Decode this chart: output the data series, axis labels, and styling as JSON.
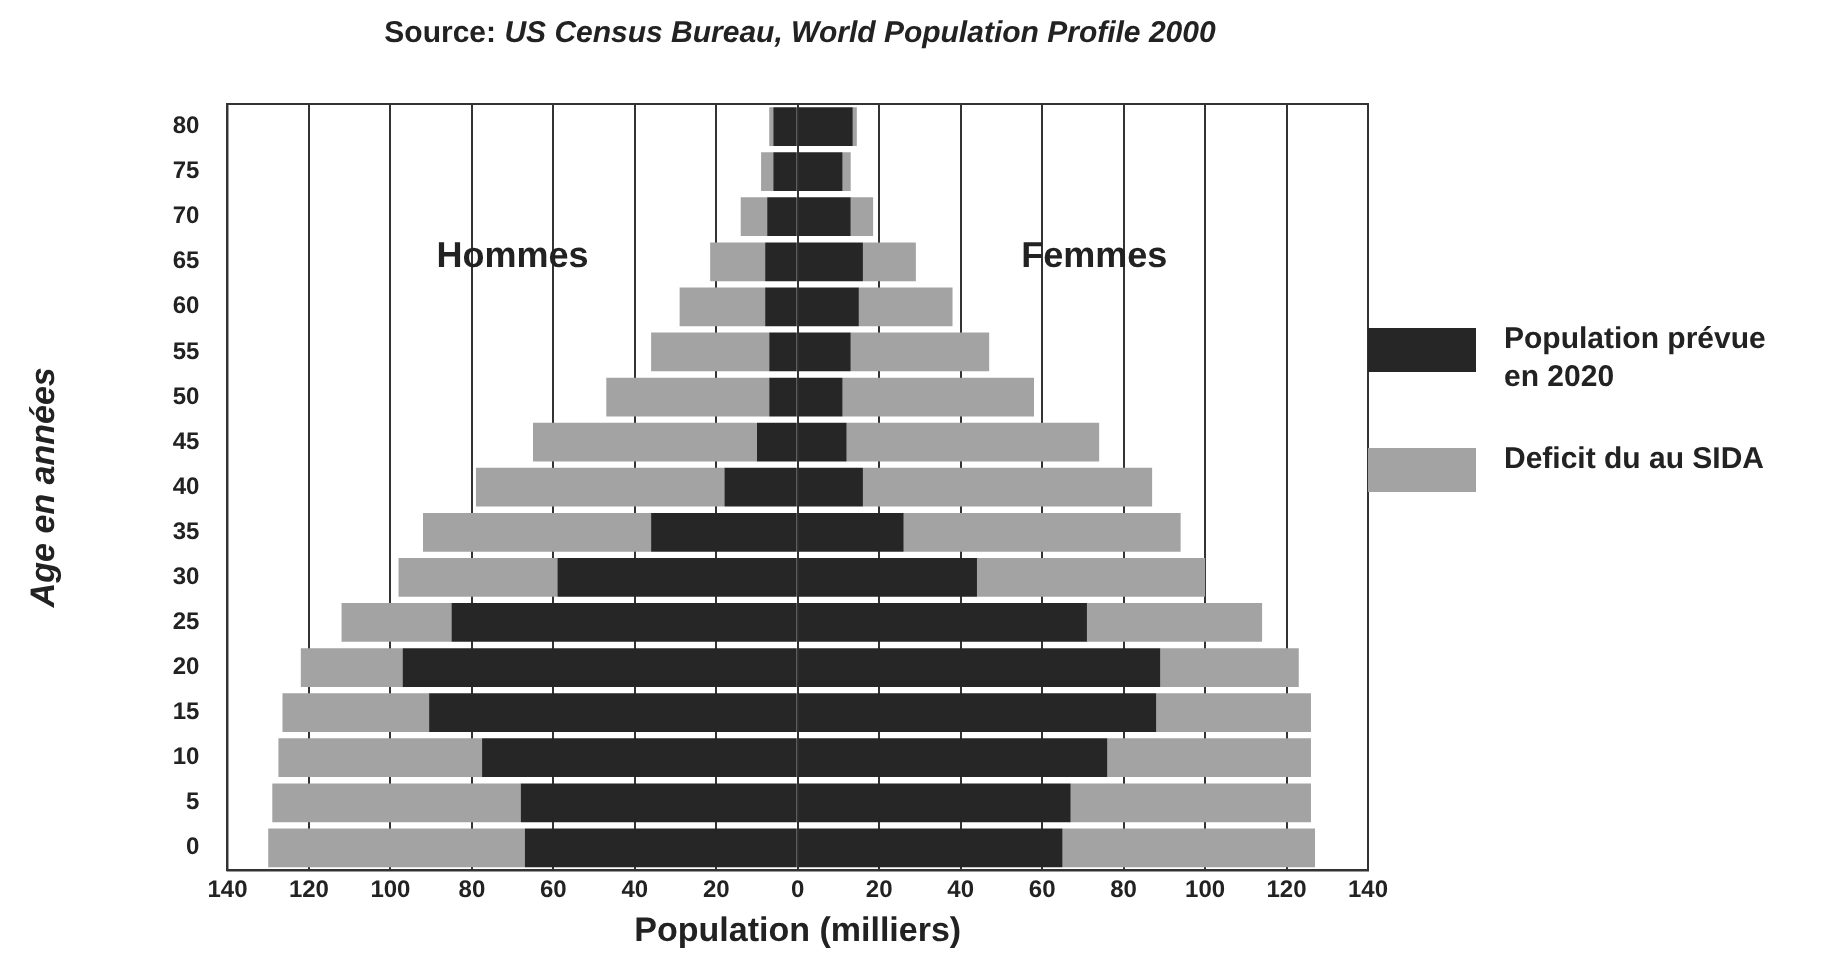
{
  "chart_data": {
    "type": "bar",
    "orientation": "horizontal",
    "stacked": true,
    "title": "Source: US Census Bureau, World Population Profile 2000",
    "xlabel": "Population (milliers)",
    "ylabel": "Age en années",
    "annotations": [
      "Hommes",
      "Femmes"
    ],
    "categories": [
      "80",
      "75",
      "70",
      "65",
      "60",
      "55",
      "50",
      "45",
      "40",
      "35",
      "30",
      "25",
      "20",
      "15",
      "10",
      "5",
      "0"
    ],
    "series": [
      {
        "name": "Population prévue en  2020",
        "color": "#262626",
        "values": [
          -6,
          -6,
          -7.5,
          -8,
          -8,
          -7,
          -7,
          -10,
          -18,
          -36,
          -59,
          -85,
          -97,
          -90.5,
          -77.5,
          -68,
          -67
        ]
      },
      {
        "color": "#262626",
        "values": [
          13.5,
          11,
          13,
          16,
          15,
          13,
          11,
          12,
          16,
          26,
          44,
          71,
          89,
          88,
          76,
          67,
          65
        ]
      },
      {
        "name": "Deficit du au SIDA",
        "color": "#a3a3a3",
        "values": [
          -1,
          -3,
          -6.5,
          -13.5,
          -21,
          -29,
          -40,
          -55,
          -61,
          -56,
          -39,
          -27,
          -25,
          -36,
          -50,
          -61,
          -63
        ]
      },
      {
        "color": "#a3a3a3",
        "values": [
          1,
          2,
          5.5,
          13,
          23,
          34,
          47,
          62,
          71,
          68,
          56,
          43,
          34,
          38,
          50,
          59,
          62
        ]
      }
    ],
    "xlim": [
      -140,
      140
    ],
    "xticks": [
      {
        "value": -140,
        "label": "140"
      },
      {
        "value": -120,
        "label": "120"
      },
      {
        "value": -100,
        "label": "100"
      },
      {
        "value": -80,
        "label": "80"
      },
      {
        "value": -60,
        "label": "60"
      },
      {
        "value": -40,
        "label": "40"
      },
      {
        "value": -20,
        "label": "20"
      },
      0,
      20,
      40,
      60,
      80,
      100,
      120,
      140
    ],
    "grid": "x",
    "legend": "right"
  }
}
